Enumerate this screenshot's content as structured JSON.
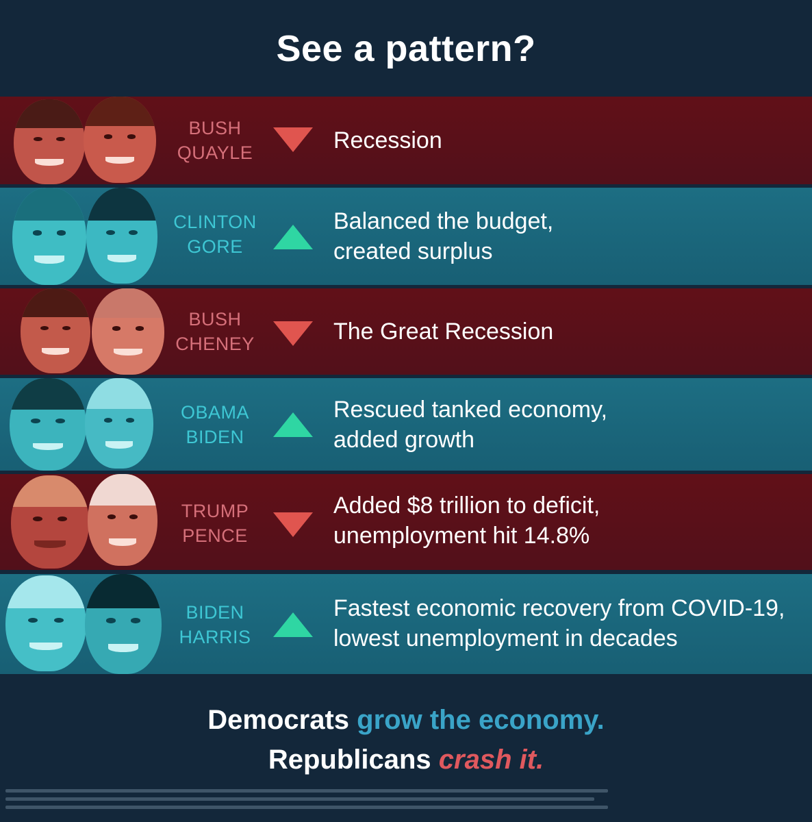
{
  "title": "See a pattern?",
  "colors": {
    "republican_band": "#5a1018",
    "democrat_band": "#1b6a80",
    "down_arrow": "#e0554f",
    "up_arrow": "#2fd6a3",
    "rep_name": "#d6707a",
    "dem_name": "#3ec7d4",
    "background": "#13273a"
  },
  "rows": [
    {
      "party": "rep",
      "names": [
        "BUSH",
        "QUAYLE"
      ],
      "trend": "down",
      "arrow_icon": "down-triangle-icon",
      "result": [
        "Recession"
      ]
    },
    {
      "party": "dem",
      "names": [
        "CLINTON",
        "GORE"
      ],
      "trend": "up",
      "arrow_icon": "up-triangle-icon",
      "result": [
        "Balanced the budget,",
        "created surplus"
      ]
    },
    {
      "party": "rep",
      "names": [
        "BUSH",
        "CHENEY"
      ],
      "trend": "down",
      "arrow_icon": "down-triangle-icon",
      "result": [
        "The Great Recession"
      ]
    },
    {
      "party": "dem",
      "names": [
        "OBAMA",
        "BIDEN"
      ],
      "trend": "up",
      "arrow_icon": "up-triangle-icon",
      "result": [
        "Rescued tanked economy,",
        "added growth"
      ]
    },
    {
      "party": "rep",
      "names": [
        "TRUMP",
        "PENCE"
      ],
      "trend": "down",
      "arrow_icon": "down-triangle-icon",
      "result": [
        "Added $8 trillion to deficit,",
        "unemployment hit 14.8%"
      ]
    },
    {
      "party": "dem",
      "names": [
        "BIDEN",
        "HARRIS"
      ],
      "trend": "up",
      "arrow_icon": "up-triangle-icon",
      "result": [
        "Fastest economic recovery from COVID-19,",
        "lowest unemployment in decades"
      ]
    }
  ],
  "tagline": {
    "line1_a": "Democrats",
    "line1_b": "grow the economy.",
    "line2_a": "Republicans",
    "line2_b": "crash it."
  }
}
